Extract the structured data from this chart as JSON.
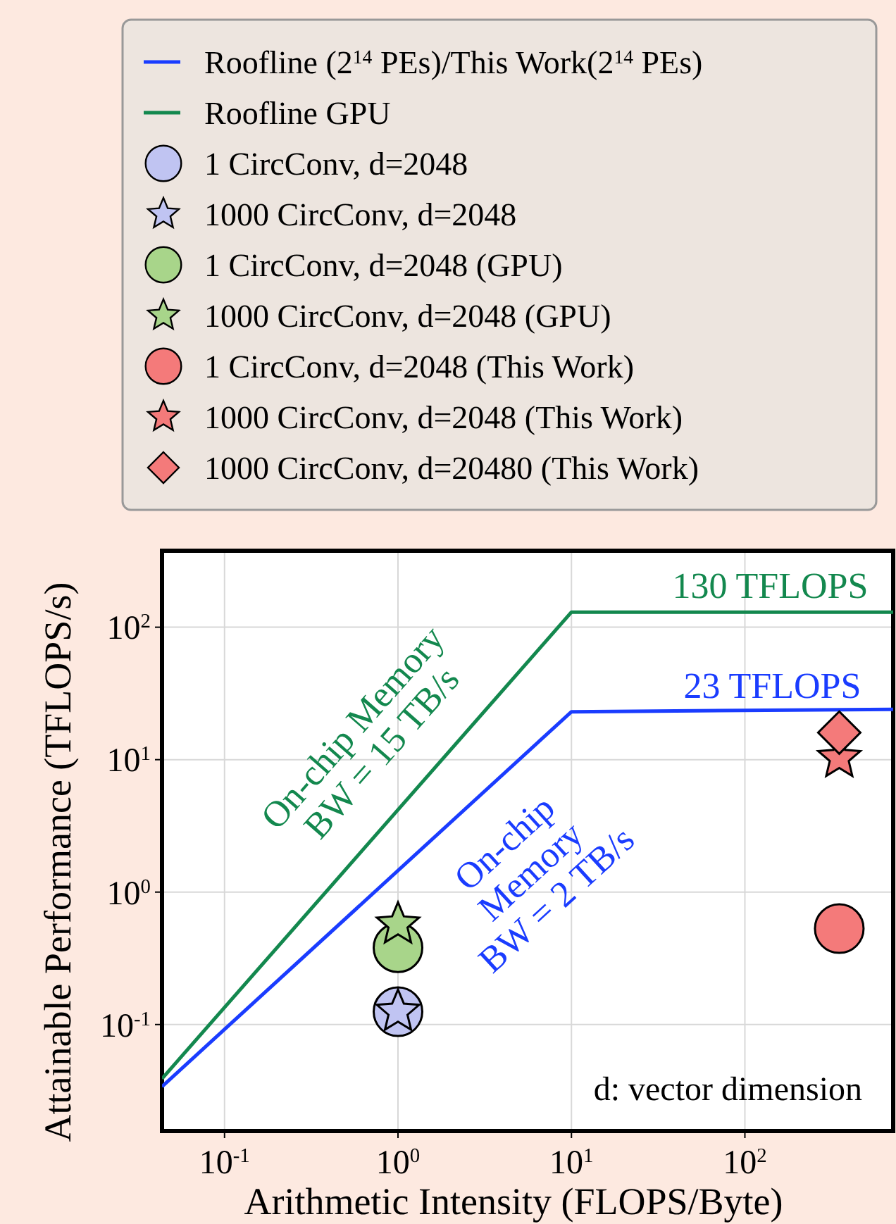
{
  "chart_data": {
    "type": "line",
    "xlabel": "Arithmetic Intensity (FLOPS/Byte)",
    "ylabel": "Attainable Performance (TFLOPS/s)",
    "log": "xy",
    "grid": true,
    "legend": "top",
    "xlim": [
      0.0436,
      716
    ],
    "ylim": [
      0.0157,
      378
    ],
    "xticks": [
      {
        "value": 0.1,
        "label": "10$^{-1}$"
      },
      {
        "value": 1,
        "label": "10$^{0}$"
      },
      {
        "value": 10,
        "label": "10$^{1}$"
      },
      {
        "value": 100,
        "label": "10$^{2}$"
      }
    ],
    "yticks": [
      {
        "value": 0.1,
        "label": "10$^{-1}$"
      },
      {
        "value": 1,
        "label": "10$^{0}$"
      },
      {
        "value": 10,
        "label": "10$^{1}$"
      },
      {
        "value": 100,
        "label": "10$^{2}$"
      }
    ],
    "series": [
      {
        "name": "Roofline (2$^{14}$ PEs)/This Work(2$^{14}$ PEs)",
        "color": "#1a3cff",
        "x": [
          0.0436,
          10,
          716
        ],
        "values": [
          0.034,
          23,
          24
        ]
      },
      {
        "name": "Roofline GPU",
        "color": "#13884e",
        "x": [
          0.0436,
          10,
          716
        ],
        "values": [
          0.039,
          130,
          130
        ]
      },
      {
        "name": "1 CircConv, d=2048",
        "type": "scatter",
        "marker": "circle",
        "color": "#c0c4f2",
        "x": [
          1
        ],
        "values": [
          0.125
        ]
      },
      {
        "name": "1000 CircConv, d=2048",
        "type": "scatter",
        "marker": "star",
        "color": "#c0c4f2",
        "x": [
          1
        ],
        "values": [
          0.125
        ]
      },
      {
        "name": "1 CircConv, d=2048 (GPU)",
        "type": "scatter",
        "marker": "circle",
        "color": "#a8d58a",
        "x": [
          1
        ],
        "values": [
          0.38
        ]
      },
      {
        "name": "1000 CircConv, d=2048 (GPU)",
        "type": "scatter",
        "marker": "star",
        "color": "#a8d58a",
        "x": [
          1
        ],
        "values": [
          0.57
        ]
      },
      {
        "name": "1 CircConv, d=2048 (This Work)",
        "type": "scatter",
        "marker": "circle",
        "color": "#f47a7a",
        "x": [
          350
        ],
        "values": [
          0.53
        ]
      },
      {
        "name": "1000 CircConv, d=2048 (This Work)",
        "type": "scatter",
        "marker": "star",
        "color": "#f47a7a",
        "x": [
          350
        ],
        "values": [
          10.3
        ]
      },
      {
        "name": "1000 CircConv, d=20480 (This Work)",
        "type": "scatter",
        "marker": "diamond",
        "color": "#f47a7a",
        "x": [
          350
        ],
        "values": [
          16
        ]
      }
    ],
    "annotations": [
      {
        "text": "130 TFLOPS",
        "x": 140,
        "y": 130
      },
      "On-chip Memory\nBW = 15 TB/s",
      {
        "text": "23 TFLOPS",
        "x": 144,
        "y": 23
      },
      "On-chip\nMemory\nBW = 2 TB/s",
      "d: vector dimension"
    ]
  }
}
